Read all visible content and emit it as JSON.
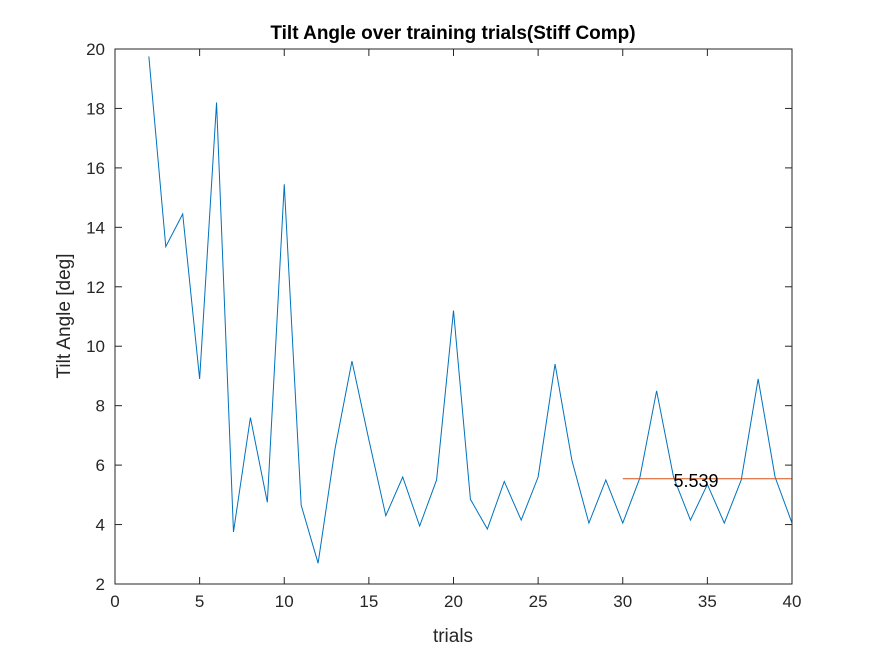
{
  "chart_data": {
    "type": "line",
    "title": "Tilt Angle over training trials(Stiff Comp)",
    "xlabel": "trials",
    "ylabel": "Tilt Angle [deg]",
    "xlim": [
      0,
      40
    ],
    "ylim": [
      2,
      20
    ],
    "xticks": [
      0,
      5,
      10,
      15,
      20,
      25,
      30,
      35,
      40
    ],
    "yticks": [
      2,
      4,
      6,
      8,
      10,
      12,
      14,
      16,
      18,
      20
    ],
    "grid": false,
    "series": [
      {
        "color": "#0072BD",
        "x": [
          2,
          3,
          4,
          5,
          6,
          7,
          8,
          9,
          10,
          11,
          12,
          13,
          14,
          15,
          16,
          17,
          18,
          19,
          20,
          21,
          22,
          23,
          24,
          25,
          26,
          27,
          28,
          29,
          30,
          31,
          32,
          33,
          34,
          35,
          36,
          37,
          38,
          39,
          40
        ],
        "y": [
          19.75,
          13.35,
          14.45,
          8.9,
          18.2,
          3.75,
          7.6,
          4.75,
          15.45,
          4.65,
          2.7,
          6.55,
          9.5,
          6.85,
          4.3,
          5.6,
          3.95,
          5.5,
          11.2,
          4.85,
          3.85,
          5.45,
          4.15,
          5.6,
          9.4,
          6.15,
          4.05,
          5.5,
          4.05,
          5.55,
          8.5,
          5.6,
          4.15,
          5.35,
          4.05,
          5.5,
          8.9,
          5.6,
          4.05
        ]
      },
      {
        "color": "#D95319",
        "x": [
          30,
          40
        ],
        "y": [
          5.539,
          5.539
        ]
      }
    ],
    "annotations": [
      {
        "text": "5.539",
        "x": 33,
        "y": 5.539
      }
    ]
  }
}
